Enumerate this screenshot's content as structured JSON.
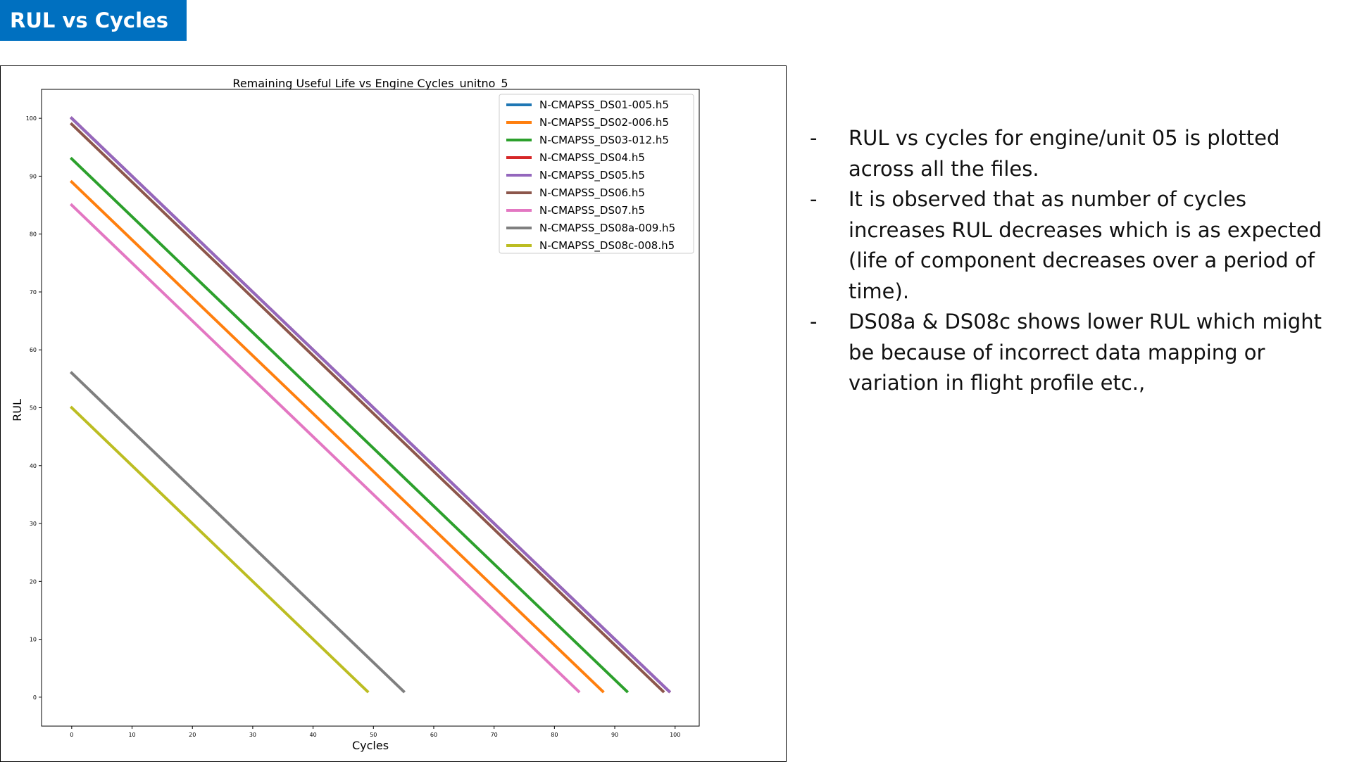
{
  "slide": {
    "title": "RUL vs Cycles",
    "notes": [
      "RUL vs cycles for engine/unit 05 is plotted across all the files.",
      "It is observed that as number of cycles increases RUL decreases which is as expected (life of component decreases over a period of time).",
      "DS08a & DS08c shows lower RUL which might be because of incorrect data mapping or variation in flight profile etc.,"
    ],
    "bullet_marker": "-"
  },
  "chart_data": {
    "type": "line",
    "title": "Remaining Useful Life vs Engine Cycles_unitno_5",
    "xlabel": "Cycles",
    "ylabel": "RUL",
    "xlim": [
      -5,
      104
    ],
    "ylim": [
      -5,
      105
    ],
    "xticks": [
      0,
      10,
      20,
      30,
      40,
      50,
      60,
      70,
      80,
      90,
      100
    ],
    "yticks": [
      0,
      10,
      20,
      30,
      40,
      50,
      60,
      70,
      80,
      90,
      100
    ],
    "grid": false,
    "legend_position": "top-right",
    "series": [
      {
        "name": "N-CMAPSS_DS01-005.h5",
        "color": "#1f77b4",
        "x": [
          0,
          99
        ],
        "y": [
          100,
          1
        ]
      },
      {
        "name": "N-CMAPSS_DS02-006.h5",
        "color": "#ff7f0e",
        "x": [
          0,
          88
        ],
        "y": [
          89,
          1
        ]
      },
      {
        "name": "N-CMAPSS_DS03-012.h5",
        "color": "#2ca02c",
        "x": [
          0,
          92
        ],
        "y": [
          93,
          1
        ]
      },
      {
        "name": "N-CMAPSS_DS04.h5",
        "color": "#d62728",
        "x": [
          0,
          99
        ],
        "y": [
          100,
          1
        ]
      },
      {
        "name": "N-CMAPSS_DS05.h5",
        "color": "#9467bd",
        "x": [
          0,
          99
        ],
        "y": [
          100,
          1
        ]
      },
      {
        "name": "N-CMAPSS_DS06.h5",
        "color": "#8c564b",
        "x": [
          0,
          98
        ],
        "y": [
          99,
          1
        ]
      },
      {
        "name": "N-CMAPSS_DS07.h5",
        "color": "#e377c2",
        "x": [
          0,
          84
        ],
        "y": [
          85,
          1
        ]
      },
      {
        "name": "N-CMAPSS_DS08a-009.h5",
        "color": "#7f7f7f",
        "x": [
          0,
          55
        ],
        "y": [
          56,
          1
        ]
      },
      {
        "name": "N-CMAPSS_DS08c-008.h5",
        "color": "#bcbd22",
        "x": [
          0,
          49
        ],
        "y": [
          50,
          1
        ]
      }
    ]
  }
}
